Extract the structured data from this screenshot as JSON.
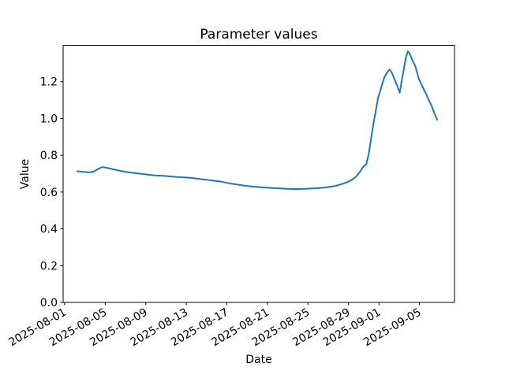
{
  "chart_data": {
    "type": "line",
    "title": "Parameter values",
    "xlabel": "Date",
    "ylabel": "Value",
    "series_color": "#1f77b4",
    "text_color": "#000000",
    "background": "#ffffff",
    "grid": false,
    "legend": null,
    "x_unit": "days since 2025-08-01",
    "xlim_days": [
      -0.15,
      38.45
    ],
    "ylim": [
      0,
      1.398
    ],
    "yticks": [
      0.0,
      0.2,
      0.4,
      0.6,
      0.8,
      1.0,
      1.2
    ],
    "xticks": [
      {
        "day": 0,
        "label": "2025-08-01"
      },
      {
        "day": 4,
        "label": "2025-08-05"
      },
      {
        "day": 8,
        "label": "2025-08-09"
      },
      {
        "day": 12,
        "label": "2025-08-13"
      },
      {
        "day": 16,
        "label": "2025-08-17"
      },
      {
        "day": 20,
        "label": "2025-08-21"
      },
      {
        "day": 24,
        "label": "2025-08-25"
      },
      {
        "day": 28,
        "label": "2025-08-29"
      },
      {
        "day": 31,
        "label": "2025-09-01"
      },
      {
        "day": 35,
        "label": "2025-09-05"
      }
    ],
    "points": [
      [
        1.25,
        0.713
      ],
      [
        1.5,
        0.712
      ],
      [
        1.8,
        0.71
      ],
      [
        2.1,
        0.709
      ],
      [
        2.35,
        0.707
      ],
      [
        2.6,
        0.708
      ],
      [
        2.9,
        0.712
      ],
      [
        3.2,
        0.722
      ],
      [
        3.5,
        0.731
      ],
      [
        3.75,
        0.736
      ],
      [
        4.0,
        0.734
      ],
      [
        4.3,
        0.73
      ],
      [
        4.7,
        0.725
      ],
      [
        5.1,
        0.72
      ],
      [
        5.6,
        0.714
      ],
      [
        6.1,
        0.709
      ],
      [
        6.6,
        0.705
      ],
      [
        7.1,
        0.702
      ],
      [
        7.7,
        0.698
      ],
      [
        8.3,
        0.694
      ],
      [
        9.0,
        0.69
      ],
      [
        9.7,
        0.688
      ],
      [
        10.4,
        0.685
      ],
      [
        11.1,
        0.682
      ],
      [
        11.8,
        0.68
      ],
      [
        12.5,
        0.677
      ],
      [
        13.2,
        0.672
      ],
      [
        14.0,
        0.667
      ],
      [
        14.8,
        0.661
      ],
      [
        15.5,
        0.656
      ],
      [
        16.2,
        0.648
      ],
      [
        17.0,
        0.641
      ],
      [
        17.8,
        0.634
      ],
      [
        18.7,
        0.629
      ],
      [
        19.6,
        0.625
      ],
      [
        20.5,
        0.622
      ],
      [
        21.4,
        0.619
      ],
      [
        22.2,
        0.617
      ],
      [
        23.0,
        0.616
      ],
      [
        23.8,
        0.618
      ],
      [
        24.5,
        0.62
      ],
      [
        25.2,
        0.622
      ],
      [
        26.0,
        0.627
      ],
      [
        26.6,
        0.632
      ],
      [
        27.2,
        0.641
      ],
      [
        27.8,
        0.652
      ],
      [
        28.3,
        0.665
      ],
      [
        28.8,
        0.687
      ],
      [
        29.15,
        0.712
      ],
      [
        29.45,
        0.738
      ],
      [
        29.75,
        0.75
      ],
      [
        30.0,
        0.81
      ],
      [
        30.25,
        0.9
      ],
      [
        30.5,
        0.985
      ],
      [
        30.65,
        1.03
      ],
      [
        30.9,
        1.11
      ],
      [
        31.15,
        1.155
      ],
      [
        31.5,
        1.22
      ],
      [
        31.8,
        1.25
      ],
      [
        32.05,
        1.267
      ],
      [
        32.3,
        1.245
      ],
      [
        32.6,
        1.205
      ],
      [
        32.85,
        1.17
      ],
      [
        33.05,
        1.14
      ],
      [
        33.2,
        1.19
      ],
      [
        33.45,
        1.27
      ],
      [
        33.65,
        1.33
      ],
      [
        33.85,
        1.366
      ],
      [
        34.05,
        1.35
      ],
      [
        34.25,
        1.322
      ],
      [
        34.6,
        1.283
      ],
      [
        34.9,
        1.22
      ],
      [
        35.25,
        1.178
      ],
      [
        35.65,
        1.133
      ],
      [
        36.0,
        1.09
      ],
      [
        36.2,
        1.068
      ],
      [
        36.45,
        1.03
      ],
      [
        36.6,
        1.012
      ],
      [
        36.75,
        0.994
      ]
    ]
  }
}
